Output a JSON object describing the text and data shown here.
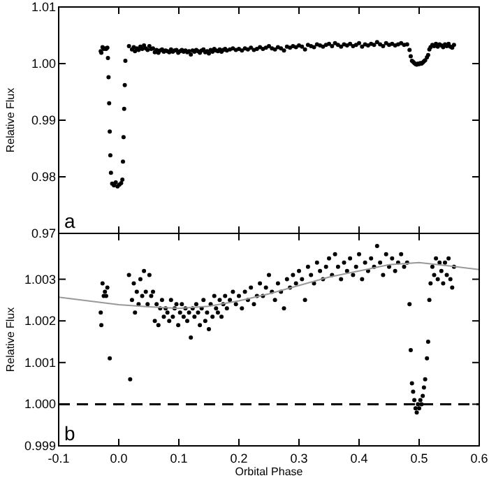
{
  "chart_data": [
    {
      "type": "scatter",
      "ylabel": "Relative Flux",
      "xlim": [
        -0.1,
        0.6
      ],
      "xticks": [
        -0.1,
        0,
        0.1,
        0.2,
        0.3,
        0.4,
        0.5,
        0.6
      ],
      "ylim": [
        0.97,
        1.01
      ],
      "yticks": [
        0.97,
        0.98,
        0.99,
        {
          "value": 1,
          "label": "1.00"
        },
        1.01
      ],
      "tick_labels": "y",
      "grid": false,
      "marker": "circle",
      "annotations": [
        "a"
      ],
      "series": [
        {
          "color": "#000000",
          "x": [
            -0.018,
            -0.017,
            -0.016,
            -0.015,
            -0.014,
            -0.013,
            -0.011,
            -0.008,
            -0.005,
            -0.002,
            0.001,
            0.004,
            0.006,
            0.007,
            0.008,
            0.009,
            0.01,
            0.011,
            -0.03,
            -0.029,
            -0.027,
            -0.025,
            -0.023,
            -0.021,
            -0.019,
            0.017,
            0.022,
            0.025,
            0.027,
            0.03,
            0.033,
            0.036,
            0.039,
            0.042,
            0.045,
            0.048,
            0.051,
            0.054,
            0.057,
            0.06,
            0.063,
            0.066,
            0.069,
            0.072,
            0.075,
            0.078,
            0.081,
            0.084,
            0.087,
            0.09,
            0.093,
            0.096,
            0.099,
            0.102,
            0.105,
            0.108,
            0.111,
            0.114,
            0.117,
            0.12,
            0.123,
            0.126,
            0.129,
            0.132,
            0.135,
            0.138,
            0.141,
            0.144,
            0.147,
            0.15,
            0.153,
            0.156,
            0.159,
            0.162,
            0.165,
            0.168,
            0.171,
            0.174,
            0.177,
            0.18,
            0.185,
            0.19,
            0.195,
            0.2,
            0.205,
            0.21,
            0.215,
            0.22,
            0.225,
            0.23,
            0.235,
            0.24,
            0.245,
            0.25,
            0.255,
            0.26,
            0.265,
            0.27,
            0.275,
            0.28,
            0.285,
            0.29,
            0.295,
            0.3,
            0.305,
            0.31,
            0.315,
            0.32,
            0.325,
            0.33,
            0.335,
            0.34,
            0.345,
            0.35,
            0.355,
            0.36,
            0.365,
            0.37,
            0.375,
            0.38,
            0.385,
            0.39,
            0.395,
            0.4,
            0.405,
            0.41,
            0.415,
            0.42,
            0.425,
            0.43,
            0.435,
            0.44,
            0.445,
            0.45,
            0.455,
            0.46,
            0.465,
            0.47,
            0.475,
            0.48,
            0.484,
            0.486,
            0.488,
            0.49,
            0.492,
            0.494,
            0.496,
            0.498,
            0.5,
            0.502,
            0.504,
            0.506,
            0.508,
            0.51,
            0.513,
            0.515,
            0.517,
            0.519,
            0.522,
            0.525,
            0.528,
            0.531,
            0.534,
            0.537,
            0.54,
            0.543,
            0.546,
            0.549,
            0.552,
            0.555,
            0.558
          ],
          "values": [
            1.001,
            0.9976,
            0.993,
            0.988,
            0.9838,
            0.9807,
            0.9788,
            0.9785,
            0.979,
            0.9783,
            0.9786,
            0.9789,
            0.9795,
            0.9827,
            0.987,
            0.992,
            0.9962,
            1.0005,
            1.0022,
            1.0019,
            1.0029,
            1.0026,
            1.0027,
            1.0026,
            1.0028,
            1.0031,
            1.0025,
            1.0029,
            1.0022,
            1.0027,
            1.0024,
            1.003,
            1.0026,
            1.0032,
            1.0027,
            1.0024,
            1.0031,
            1.0026,
            1.0027,
            1.002,
            1.0024,
            1.0019,
            1.0023,
            1.0025,
            1.0021,
            1.0023,
            1.0022,
            1.002,
            1.0025,
            1.0021,
            1.0023,
            1.0024,
            1.0019,
            1.0022,
            1.0024,
            1.0021,
            1.0023,
            1.002,
            1.0022,
            1.0016,
            1.0023,
            1.0021,
            1.0024,
            1.0022,
            1.0019,
            1.0023,
            1.0025,
            1.002,
            1.0022,
            1.0018,
            1.0024,
            1.0021,
            1.0026,
            1.0023,
            1.0022,
            1.0025,
            1.0021,
            1.0024,
            1.0026,
            1.0023,
            1.0025,
            1.0027,
            1.0024,
            1.0026,
            1.0023,
            1.0027,
            1.0025,
            1.0028,
            1.0024,
            1.0026,
            1.0029,
            1.0026,
            1.0028,
            1.0031,
            1.0027,
            1.0025,
            1.0029,
            1.0027,
            1.0023,
            1.003,
            1.0028,
            1.0031,
            1.0029,
            1.0032,
            1.003,
            1.0025,
            1.0033,
            1.0031,
            1.0029,
            1.0034,
            1.0032,
            1.003,
            1.0033,
            1.0035,
            1.0031,
            1.0036,
            1.0033,
            1.003,
            1.0034,
            1.0032,
            1.0035,
            1.0031,
            1.0033,
            1.0036,
            1.003,
            1.0034,
            1.0032,
            1.0035,
            1.0033,
            1.0038,
            1.0034,
            1.0031,
            1.0036,
            1.0033,
            1.0035,
            1.0032,
            1.0034,
            1.0036,
            1.0033,
            1.0034,
            1.0024,
            1.0013,
            1.0005,
            1.0003,
            1.0001,
            0.9999,
            0.9998,
            1.0,
            0.9999,
            1.0001,
            1.0,
            1.0002,
            1.0004,
            1.0006,
            1.0011,
            1.0015,
            1.0025,
            1.0029,
            1.0033,
            1.0031,
            1.0035,
            1.003,
            1.0034,
            1.0032,
            1.0029,
            1.0034,
            1.0031,
            1.0035,
            1.003,
            1.0028,
            1.0033
          ]
        }
      ]
    },
    {
      "type": "scatter",
      "xlabel": "Orbital Phase",
      "ylabel": "Relative Flux",
      "xlim": [
        -0.1,
        0.6
      ],
      "xticks": [
        -0.1,
        {
          "value": 0,
          "label": "0.0"
        },
        0.1,
        0.2,
        0.3,
        0.4,
        0.5,
        0.6
      ],
      "ylim": [
        0.999,
        1.0041
      ],
      "yticks": [
        0.999,
        {
          "value": 1,
          "label": "1.000"
        },
        1.001,
        1.002,
        1.003
      ],
      "grid": false,
      "annotations": [
        "b"
      ],
      "ref_lines": [
        {
          "axis": "y",
          "value": 1,
          "color": "#000000",
          "line_style": "dashed"
        }
      ],
      "series": [
        {
          "color": "#000000",
          "marker": "circle",
          "x": [
            -0.03,
            -0.029,
            -0.027,
            -0.025,
            -0.023,
            -0.021,
            -0.019,
            -0.015,
            0.017,
            0.019,
            0.022,
            0.025,
            0.027,
            0.03,
            0.033,
            0.036,
            0.039,
            0.042,
            0.045,
            0.048,
            0.051,
            0.054,
            0.057,
            0.06,
            0.063,
            0.066,
            0.069,
            0.072,
            0.075,
            0.078,
            0.081,
            0.084,
            0.087,
            0.09,
            0.093,
            0.096,
            0.099,
            0.102,
            0.105,
            0.108,
            0.111,
            0.114,
            0.117,
            0.12,
            0.123,
            0.126,
            0.129,
            0.132,
            0.135,
            0.138,
            0.141,
            0.144,
            0.147,
            0.15,
            0.153,
            0.156,
            0.159,
            0.162,
            0.165,
            0.168,
            0.171,
            0.174,
            0.177,
            0.18,
            0.185,
            0.19,
            0.195,
            0.2,
            0.205,
            0.21,
            0.215,
            0.22,
            0.225,
            0.23,
            0.235,
            0.24,
            0.245,
            0.25,
            0.255,
            0.26,
            0.265,
            0.27,
            0.275,
            0.28,
            0.285,
            0.29,
            0.295,
            0.3,
            0.305,
            0.31,
            0.315,
            0.32,
            0.325,
            0.33,
            0.335,
            0.34,
            0.345,
            0.35,
            0.355,
            0.36,
            0.365,
            0.37,
            0.375,
            0.38,
            0.385,
            0.39,
            0.395,
            0.4,
            0.405,
            0.41,
            0.415,
            0.42,
            0.425,
            0.43,
            0.435,
            0.44,
            0.445,
            0.45,
            0.455,
            0.46,
            0.465,
            0.47,
            0.475,
            0.48,
            0.484,
            0.486,
            0.488,
            0.49,
            0.492,
            0.494,
            0.496,
            0.498,
            0.5,
            0.502,
            0.504,
            0.506,
            0.508,
            0.51,
            0.513,
            0.515,
            0.517,
            0.519,
            0.522,
            0.525,
            0.528,
            0.531,
            0.534,
            0.537,
            0.54,
            0.543,
            0.546,
            0.549,
            0.552,
            0.555,
            0.558
          ],
          "values": [
            1.0022,
            1.0019,
            1.0029,
            1.0026,
            1.0027,
            1.0026,
            1.0028,
            1.0011,
            1.0031,
            1.0006,
            1.0025,
            1.0029,
            1.0022,
            1.0027,
            1.0024,
            1.003,
            1.0026,
            1.0032,
            1.0027,
            1.0024,
            1.0031,
            1.0026,
            1.0027,
            1.002,
            1.0024,
            1.0019,
            1.0023,
            1.0025,
            1.0021,
            1.0023,
            1.0022,
            1.002,
            1.0025,
            1.0021,
            1.0023,
            1.0024,
            1.0019,
            1.0022,
            1.0024,
            1.0021,
            1.0023,
            1.002,
            1.0022,
            1.0016,
            1.0023,
            1.0021,
            1.0024,
            1.0022,
            1.0019,
            1.0023,
            1.0025,
            1.002,
            1.0022,
            1.0018,
            1.0024,
            1.0021,
            1.0026,
            1.0023,
            1.0022,
            1.0025,
            1.0021,
            1.0024,
            1.0026,
            1.0023,
            1.0025,
            1.0027,
            1.0024,
            1.0026,
            1.0023,
            1.0027,
            1.0025,
            1.0028,
            1.0024,
            1.0026,
            1.0029,
            1.0026,
            1.0028,
            1.0031,
            1.0027,
            1.0025,
            1.0029,
            1.0027,
            1.0023,
            1.003,
            1.0028,
            1.0031,
            1.0029,
            1.0032,
            1.003,
            1.0025,
            1.0033,
            1.0031,
            1.0029,
            1.0034,
            1.0032,
            1.003,
            1.0033,
            1.0035,
            1.0031,
            1.0036,
            1.0033,
            1.003,
            1.0034,
            1.0032,
            1.0035,
            1.0031,
            1.0033,
            1.0036,
            1.003,
            1.0034,
            1.0032,
            1.0035,
            1.0033,
            1.0038,
            1.0034,
            1.0031,
            1.0036,
            1.0033,
            1.0035,
            1.0032,
            1.0034,
            1.0036,
            1.0033,
            1.0034,
            1.0024,
            1.0013,
            1.0005,
            1.0003,
            1.0001,
            0.9999,
            0.9998,
            1.0,
            0.9999,
            1.0001,
            1.0,
            1.0002,
            1.0004,
            1.0006,
            1.0011,
            1.0015,
            1.0025,
            1.0029,
            1.0033,
            1.0031,
            1.0035,
            1.003,
            1.0034,
            1.0032,
            1.0029,
            1.0034,
            1.0031,
            1.0035,
            1.003,
            1.0028,
            1.0033
          ]
        },
        {
          "type": "line",
          "color": "#999999",
          "marker": "none",
          "x": [
            -0.1,
            0.0,
            0.05,
            0.1,
            0.15,
            0.2,
            0.25,
            0.3,
            0.35,
            0.4,
            0.45,
            0.5,
            0.55,
            0.6
          ],
          "values": [
            1.00257,
            1.00239,
            1.00234,
            1.0023,
            1.00235,
            1.00248,
            1.00265,
            1.00285,
            1.00305,
            1.0032,
            1.00335,
            1.0034,
            1.00332,
            1.00323
          ]
        }
      ]
    }
  ]
}
